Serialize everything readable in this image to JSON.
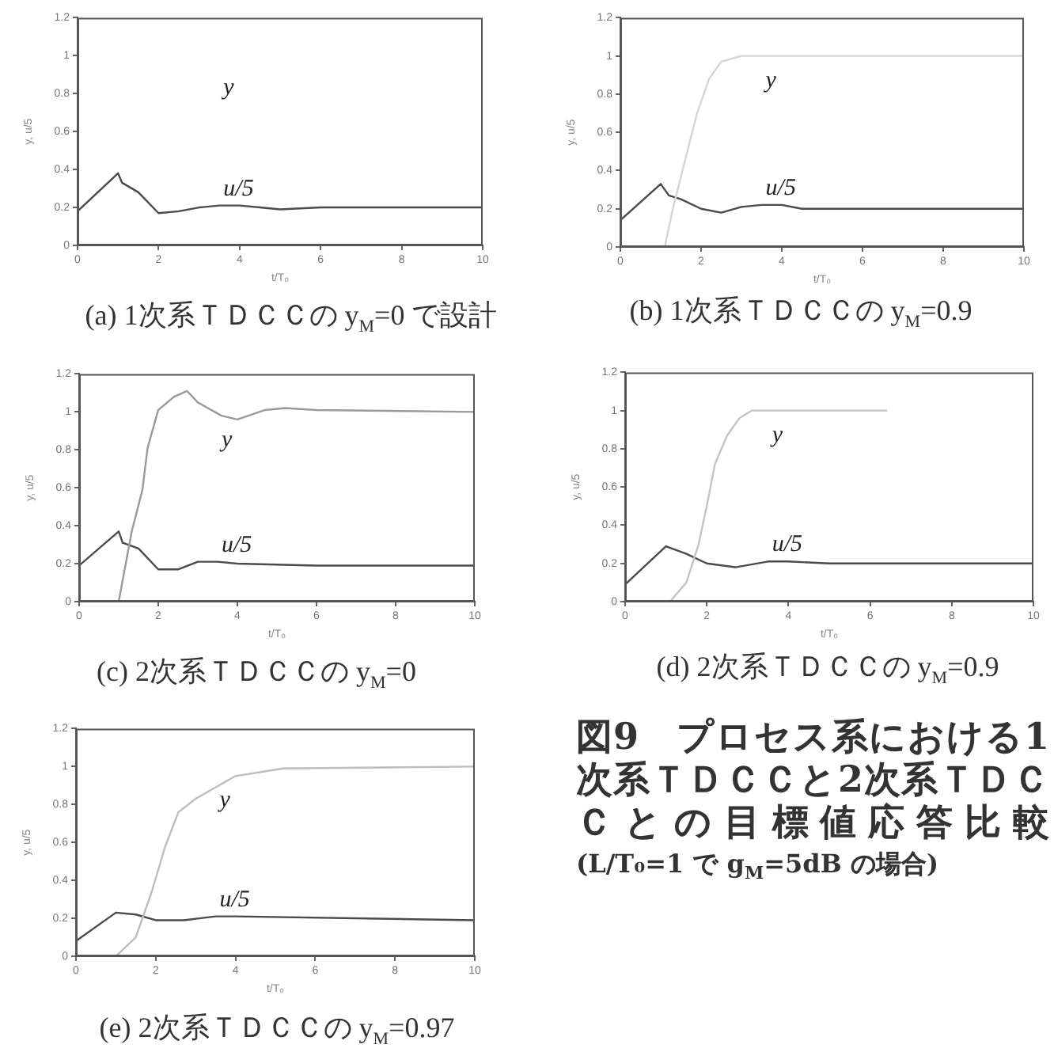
{
  "chart_data": [
    {
      "type": "line",
      "title": "(a) 1次系ＴＤＣＣの y$_{M}$=0 で設計",
      "xlabel": "t/T₀",
      "ylabel": "y, u/5",
      "xlim": [
        0,
        10
      ],
      "xticks": [
        0,
        2,
        4,
        6,
        8,
        10
      ],
      "ylim": [
        0,
        1.2
      ],
      "yticks": [
        0,
        0.2,
        0.4,
        0.6,
        0.8,
        1,
        1.2
      ],
      "marker": "none",
      "series": [
        {
          "name": "u/5",
          "color": "#4a4a4a",
          "x": [
            0,
            1,
            1.1,
            1.5,
            2,
            2.5,
            3,
            3.5,
            4,
            4.5,
            5,
            6,
            10
          ],
          "values": [
            0.18,
            0.38,
            0.33,
            0.28,
            0.17,
            0.18,
            0.2,
            0.21,
            0.21,
            0.2,
            0.19,
            0.2,
            0.2
          ]
        }
      ],
      "annotations": [
        "y"
      ]
    },
    {
      "type": "line",
      "title": "(b) 1次系ＴＤＣＣの y$_{M}$=0.9",
      "xlabel": "t/T₀",
      "ylabel": "y, u/5",
      "xlim": [
        0,
        10
      ],
      "xticks": [
        0,
        2,
        4,
        6,
        8,
        10
      ],
      "ylim": [
        0,
        1.2
      ],
      "yticks": [
        0,
        0.2,
        0.4,
        0.6,
        0.8,
        1,
        1.2
      ],
      "marker": "none",
      "series": [
        {
          "name": "y",
          "color": "#d4d4d4",
          "x": [
            1.1,
            1.3,
            1.6,
            1.9,
            2.2,
            2.5,
            3,
            4,
            10
          ],
          "values": [
            0,
            0.2,
            0.45,
            0.7,
            0.88,
            0.97,
            1,
            1,
            1
          ]
        },
        {
          "name": "u/5",
          "color": "#4a4a4a",
          "x": [
            0,
            1,
            1.2,
            1.5,
            2,
            2.5,
            3,
            3.5,
            4,
            4.5,
            10
          ],
          "values": [
            0.14,
            0.33,
            0.27,
            0.25,
            0.2,
            0.18,
            0.21,
            0.22,
            0.22,
            0.2,
            0.2
          ]
        }
      ]
    },
    {
      "type": "line",
      "title": "(c) 2次系ＴＤＣＣの y$_{M}$=0",
      "xlabel": "t/T₀",
      "ylabel": "y, u/5",
      "xlim": [
        0,
        10
      ],
      "xticks": [
        0,
        2,
        4,
        6,
        8,
        10
      ],
      "ylim": [
        0,
        1.2
      ],
      "yticks": [
        0,
        0.2,
        0.4,
        0.6,
        0.8,
        1,
        1.2
      ],
      "marker": "none",
      "series": [
        {
          "name": "y",
          "color": "#9a9a9a",
          "x": [
            1,
            1.33,
            1.6,
            1.73,
            2,
            2.4,
            2.73,
            3,
            3.6,
            4,
            4.7,
            5.2,
            6,
            10
          ],
          "values": [
            0,
            0.37,
            0.59,
            0.81,
            1.01,
            1.08,
            1.11,
            1.05,
            0.98,
            0.96,
            1.01,
            1.02,
            1.01,
            1
          ]
        },
        {
          "name": "u/5",
          "color": "#4a4a4a",
          "x": [
            0,
            1,
            1.1,
            1.5,
            2,
            2.5,
            3,
            3.5,
            4,
            6,
            10
          ],
          "values": [
            0.19,
            0.37,
            0.31,
            0.28,
            0.17,
            0.17,
            0.21,
            0.21,
            0.2,
            0.19,
            0.19
          ]
        }
      ]
    },
    {
      "type": "line",
      "title": "(d) 2次系ＴＤＣＣの y$_{M}$=0.9",
      "xlabel": "t/T₀",
      "ylabel": "y, u/5",
      "xlim": [
        0,
        10
      ],
      "xticks": [
        0,
        2,
        4,
        6,
        8,
        10
      ],
      "ylim": [
        0,
        1.2
      ],
      "yticks": [
        0,
        0.2,
        0.4,
        0.6,
        0.8,
        1,
        1.2
      ],
      "marker": "none",
      "series": [
        {
          "name": "y",
          "color": "#c4c4c4",
          "x": [
            1.1,
            1.5,
            1.8,
            2,
            2.2,
            2.5,
            2.8,
            3.1,
            6.4
          ],
          "values": [
            0,
            0.1,
            0.3,
            0.5,
            0.72,
            0.87,
            0.96,
            1,
            1
          ]
        },
        {
          "name": "u/5",
          "color": "#4a4a4a",
          "x": [
            0,
            1,
            1.5,
            2,
            2.7,
            3.5,
            4,
            5,
            10
          ],
          "values": [
            0.09,
            0.29,
            0.25,
            0.2,
            0.18,
            0.21,
            0.21,
            0.2,
            0.2
          ]
        }
      ]
    },
    {
      "type": "line",
      "title": "(e) 2次系ＴＤＣＣの y$_{M}$=0.97",
      "xlabel": "t/T₀",
      "ylabel": "y, u/5",
      "xlim": [
        0,
        10
      ],
      "xticks": [
        0,
        2,
        4,
        6,
        8,
        10
      ],
      "ylim": [
        0,
        1.2
      ],
      "yticks": [
        0,
        0.2,
        0.4,
        0.6,
        0.8,
        1,
        1.2
      ],
      "marker": "none",
      "series": [
        {
          "name": "y",
          "color": "#bdbdbd",
          "x": [
            1,
            1.5,
            1.9,
            2.24,
            2.57,
            3,
            4,
            5.2,
            10
          ],
          "values": [
            0,
            0.1,
            0.34,
            0.58,
            0.76,
            0.83,
            0.95,
            0.99,
            1
          ]
        },
        {
          "name": "u/5",
          "color": "#4a4a4a",
          "x": [
            0,
            1,
            1.5,
            2,
            2.7,
            3.5,
            4,
            10
          ],
          "values": [
            0.08,
            0.23,
            0.22,
            0.19,
            0.19,
            0.21,
            0.21,
            0.19
          ]
        }
      ]
    },
    {
      "type": "other",
      "title": "図9　プロセス系における1次系ＴＤＣＣと2次系ＴＤＣＣとの目標値応答比較",
      "subtitle": "(L/T₀=1 で g$_{M}$=5dB の場合)"
    }
  ]
}
